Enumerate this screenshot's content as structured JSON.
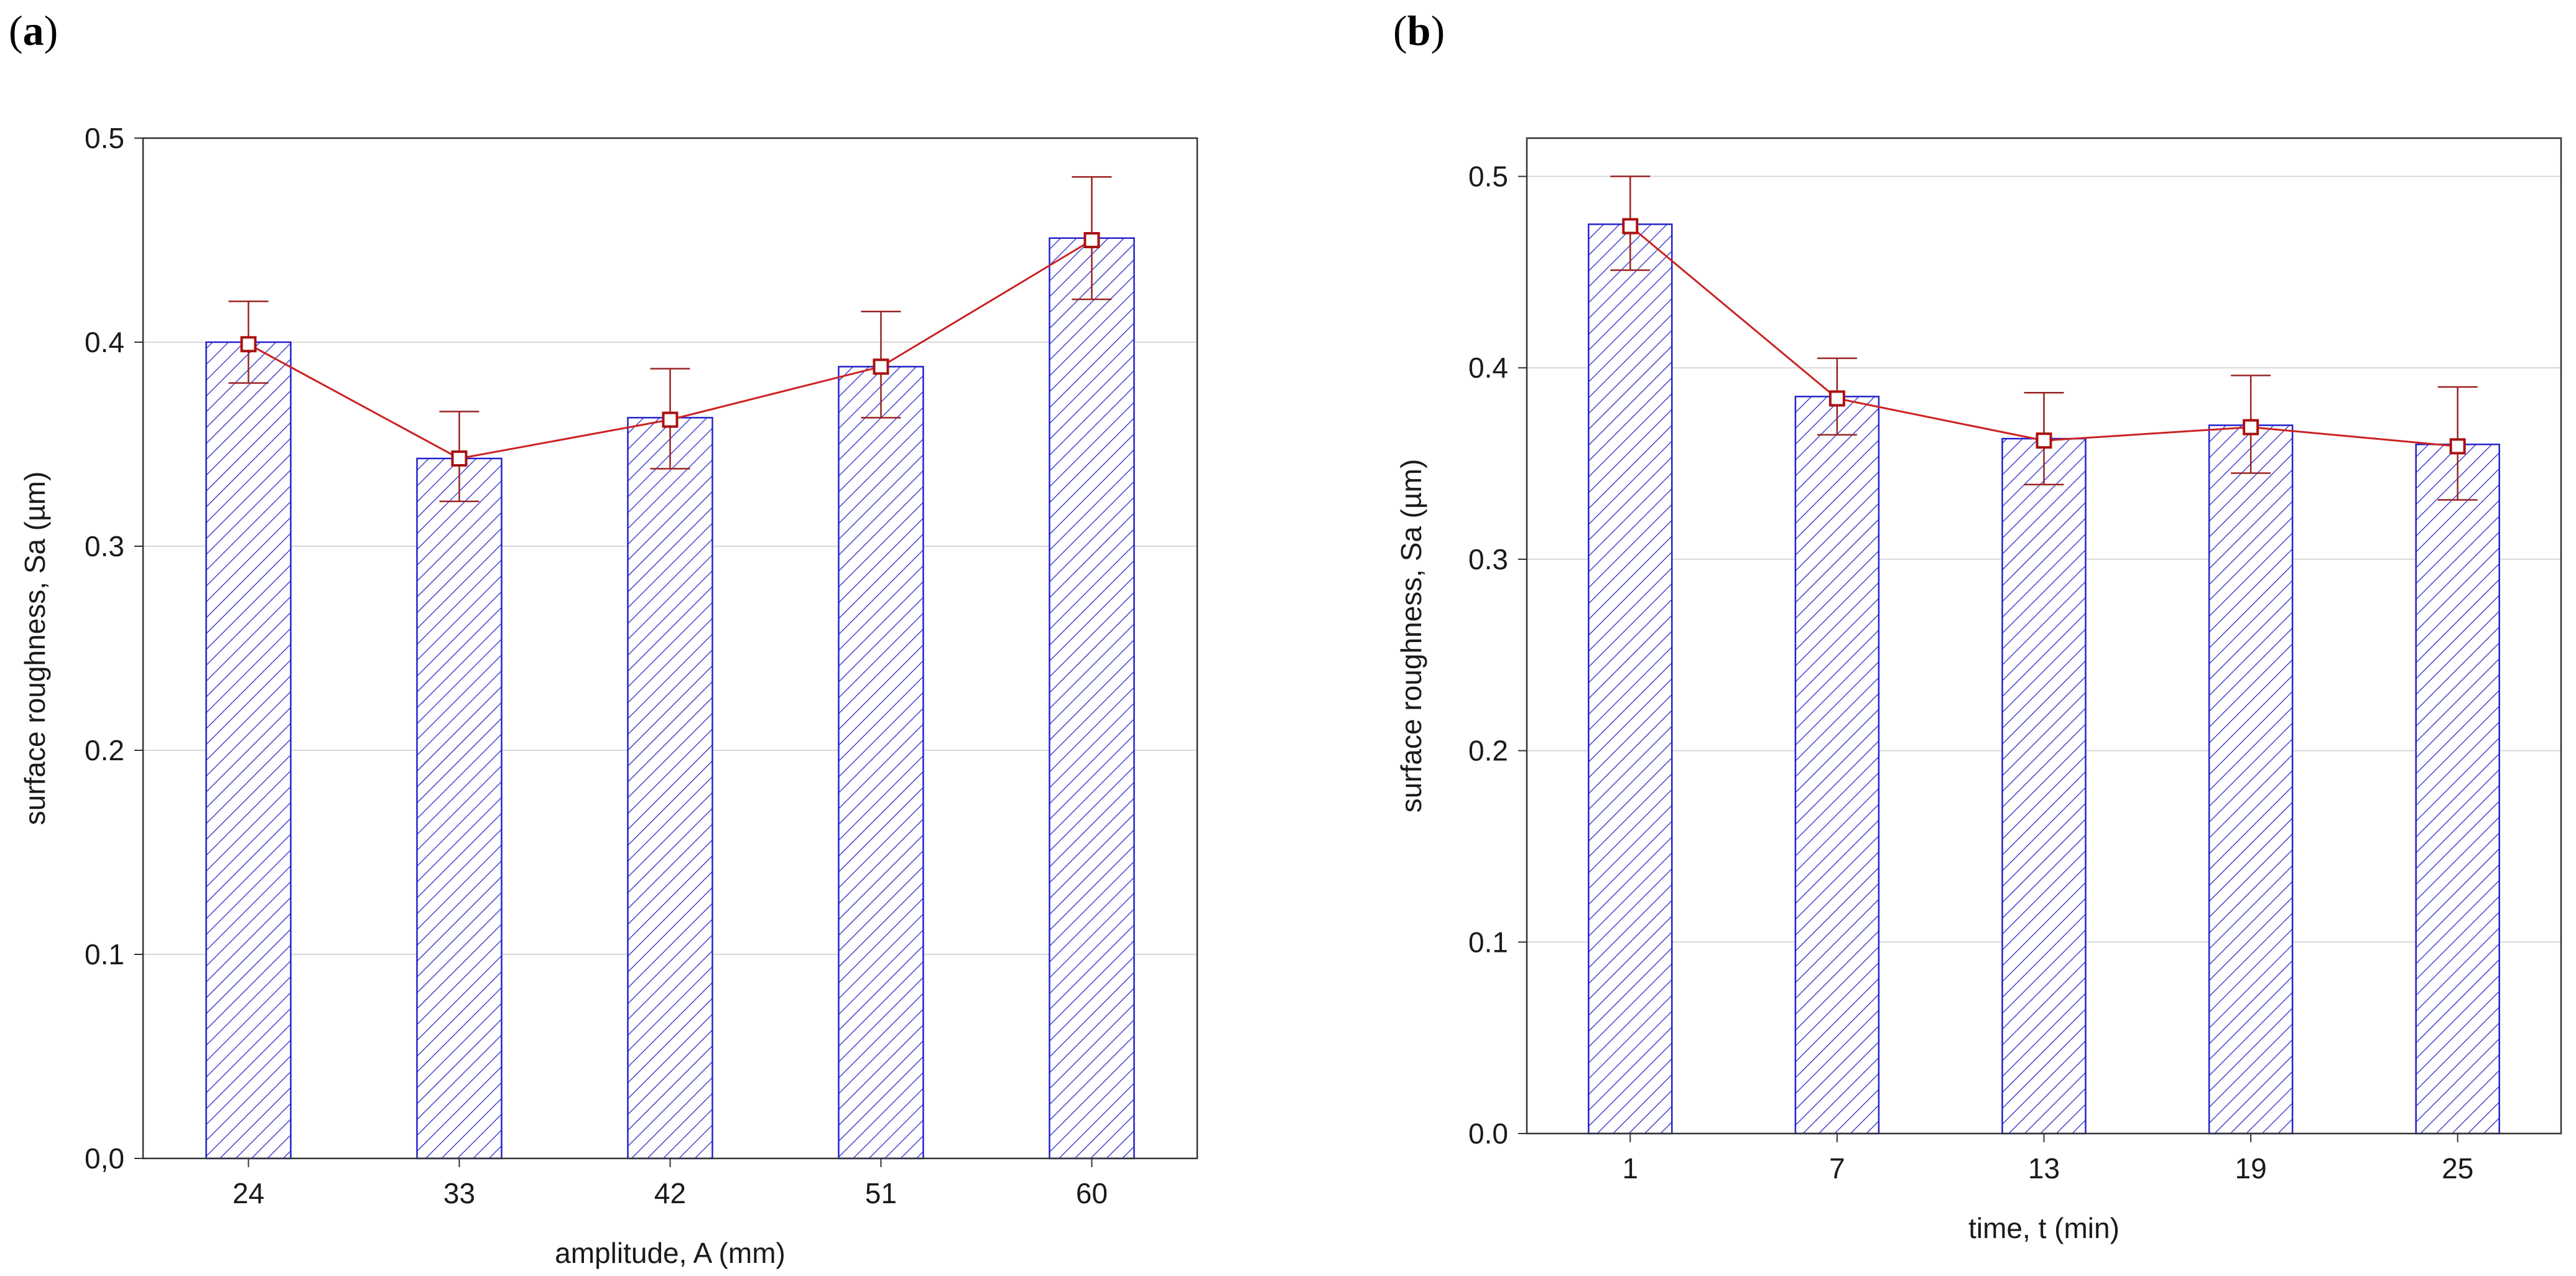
{
  "panels": [
    {
      "label_open": "(",
      "label_letter": "a",
      "label_close": ")"
    },
    {
      "label_open": "(",
      "label_letter": "b",
      "label_close": ")"
    }
  ],
  "colors": {
    "bar_stroke": "#2222cc",
    "hatch": "#2222cc",
    "line": "#cc2222",
    "error": "#992222",
    "marker": "#aa1111",
    "grid": "#d8d8d8"
  },
  "chart_data": [
    {
      "type": "bar",
      "title": "",
      "categories": [
        "24",
        "33",
        "42",
        "51",
        "60"
      ],
      "values": [
        0.4,
        0.343,
        0.363,
        0.388,
        0.451
      ],
      "line_means": [
        0.399,
        0.343,
        0.362,
        0.388,
        0.45
      ],
      "error_low": [
        0.38,
        0.322,
        0.338,
        0.363,
        0.421
      ],
      "error_high": [
        0.42,
        0.366,
        0.387,
        0.415,
        0.481
      ],
      "xlabel": "amplitude, A (mm)",
      "ylabel": "surface roughness, Sa (µm)",
      "ylim": [
        0,
        0.5
      ],
      "yticks": [
        0,
        0.1,
        0.2,
        0.3,
        0.4,
        0.5
      ],
      "ytick_labels": [
        "0,0",
        "0.1",
        "0.2",
        "0.3",
        "0.4",
        "0.5"
      ],
      "grid": true
    },
    {
      "type": "bar",
      "title": "",
      "categories": [
        "1",
        "7",
        "13",
        "19",
        "25"
      ],
      "values": [
        0.475,
        0.385,
        0.363,
        0.37,
        0.36
      ],
      "line_means": [
        0.474,
        0.384,
        0.362,
        0.369,
        0.359
      ],
      "error_low": [
        0.451,
        0.365,
        0.339,
        0.345,
        0.331
      ],
      "error_high": [
        0.5,
        0.405,
        0.387,
        0.396,
        0.39
      ],
      "xlabel": "time, t (min)",
      "ylabel": "surface roughness, Sa (µm)",
      "ylim": [
        0,
        0.52
      ],
      "yticks": [
        0,
        0.1,
        0.2,
        0.3,
        0.4,
        0.5
      ],
      "ytick_labels": [
        "0.0",
        "0.1",
        "0.2",
        "0.3",
        "0.4",
        "0.5"
      ],
      "grid": true
    }
  ]
}
